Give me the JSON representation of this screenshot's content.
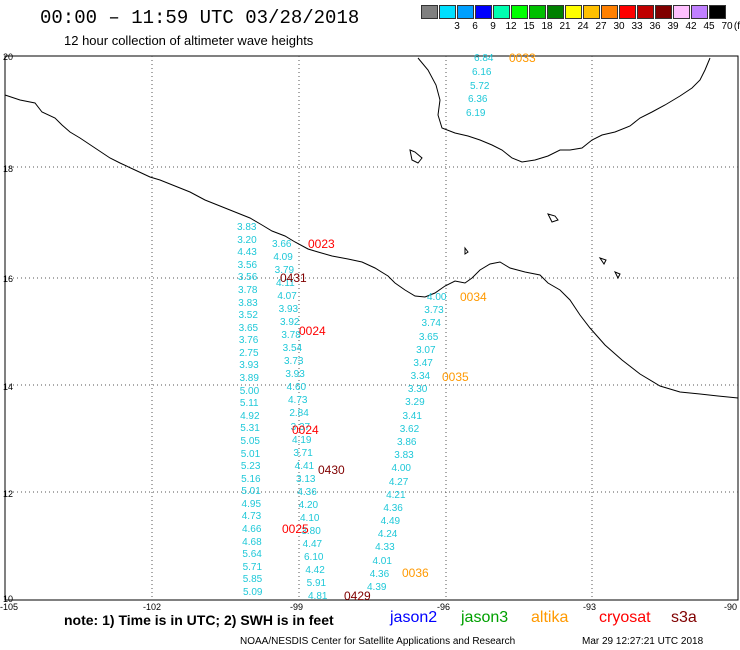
{
  "header": {
    "title": "00:00 – 11:59 UTC 03/28/2018",
    "subtitle": "12 hour collection of altimeter wave heights"
  },
  "scale": {
    "unit": "(ft)",
    "swatches": [
      {
        "color": "#808080",
        "label": ""
      },
      {
        "color": "#00e0ff",
        "label": "3"
      },
      {
        "color": "#00a0ff",
        "label": "6"
      },
      {
        "color": "#0000ff",
        "label": "9"
      },
      {
        "color": "#00ffb0",
        "label": "12"
      },
      {
        "color": "#00ff00",
        "label": "15"
      },
      {
        "color": "#00c000",
        "label": "18"
      },
      {
        "color": "#008000",
        "label": "21"
      },
      {
        "color": "#ffff00",
        "label": "24"
      },
      {
        "color": "#ffc000",
        "label": "27"
      },
      {
        "color": "#ff8000",
        "label": "30"
      },
      {
        "color": "#ff0000",
        "label": "33"
      },
      {
        "color": "#c00000",
        "label": "36"
      },
      {
        "color": "#800000",
        "label": "39"
      },
      {
        "color": "#ffc0ff",
        "label": "42"
      },
      {
        "color": "#c080ff",
        "label": "45"
      },
      {
        "color": "#000000",
        "label": "70"
      }
    ]
  },
  "axes": {
    "lat_labels": [
      "20",
      "18",
      "16",
      "14",
      "12",
      "10"
    ],
    "lon_labels": [
      "-105",
      "-102",
      "-99",
      "-96",
      "-93",
      "-90"
    ]
  },
  "tracks": [
    {
      "name": "track-a",
      "values": [
        "3.83",
        "3.20",
        "4.43",
        "3.56",
        "3.56",
        "3.78",
        "3.83",
        "3.52",
        "3.65",
        "3.76",
        "2.75",
        "3.93",
        "3.89",
        "5.00",
        "5.11",
        "4.92",
        "5.31",
        "5.05",
        "5.01",
        "5.23",
        "5.16",
        "5.01",
        "4.95",
        "4.73",
        "4.66",
        "4.68",
        "5.64",
        "5.71",
        "5.85",
        "5.09"
      ]
    },
    {
      "name": "track-b",
      "values": [
        "3.66",
        "4.09",
        "3.79",
        "4.11",
        "4.07",
        "3.93",
        "3.92",
        "3.78",
        "3.54",
        "3.73",
        "3.93",
        "4.60",
        "4.73",
        "2.84",
        "3.37",
        "4.19",
        "3.71",
        "4.41",
        "3.13",
        "4.36",
        "4.20",
        "4.10",
        "3.80",
        "4.47",
        "6.10",
        "4.42",
        "5.91",
        "4.81"
      ]
    },
    {
      "name": "track-c",
      "values": [
        "4.00",
        "3.73",
        "3.74",
        "3.65",
        "3.07",
        "3.47",
        "3.34",
        "3.30",
        "3.29",
        "3.41",
        "3.62",
        "3.86",
        "3.83",
        "4.00",
        "4.27",
        "4.21",
        "4.36",
        "4.49",
        "4.24",
        "4.33",
        "4.01",
        "4.36",
        "4.39"
      ]
    },
    {
      "name": "track-d",
      "values": [
        "6.84",
        "6.16",
        "5.72",
        "6.36",
        "6.19"
      ]
    }
  ],
  "time_labels": [
    {
      "text": "0023",
      "color": "#ff0000"
    },
    {
      "text": "0431",
      "color": "#800000"
    },
    {
      "text": "0024",
      "color": "#ff0000"
    },
    {
      "text": "0024",
      "color": "#ff0000"
    },
    {
      "text": "0430",
      "color": "#800000"
    },
    {
      "text": "0025",
      "color": "#ff0000"
    },
    {
      "text": "0429",
      "color": "#800000"
    },
    {
      "text": "0033",
      "color": "#ff9900"
    },
    {
      "text": "0034",
      "color": "#ff9900"
    },
    {
      "text": "0035",
      "color": "#ff9900"
    },
    {
      "text": "0036",
      "color": "#ff9900"
    }
  ],
  "footer": {
    "note": "note: 1) Time is in UTC; 2) SWH is in feet",
    "satellites": [
      {
        "name": "jason2",
        "color": "#0000ff"
      },
      {
        "name": "jason3",
        "color": "#00a000"
      },
      {
        "name": "altika",
        "color": "#ff9900"
      },
      {
        "name": "cryosat",
        "color": "#ff0000"
      },
      {
        "name": "s3a",
        "color": "#800000"
      }
    ],
    "credit": "NOAA/NESDIS Center for Satellite Applications and Research",
    "timestamp": "Mar 29 12:27:21 UTC 2018"
  }
}
